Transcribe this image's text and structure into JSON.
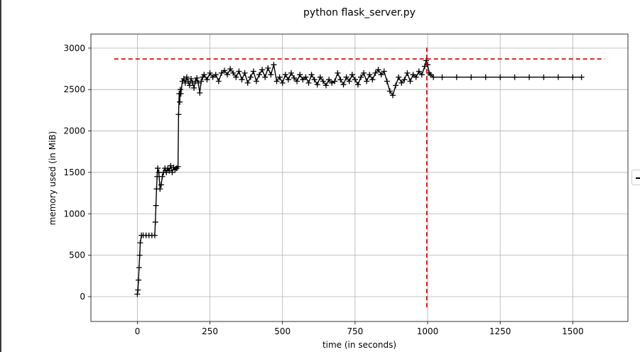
{
  "chart_data": {
    "type": "line",
    "title": "python flask_server.py",
    "xlabel": "time (in seconds)",
    "ylabel": "memory used (in MiB)",
    "xlim": [
      -160,
      1690
    ],
    "ylim": [
      -300,
      3170
    ],
    "x_ticks": [
      0,
      250,
      500,
      750,
      1000,
      1250,
      1500
    ],
    "y_ticks": [
      0,
      500,
      1000,
      1500,
      2000,
      2500,
      3000
    ],
    "x_tick_labels": [
      "0",
      "250",
      "500",
      "750",
      "1000",
      "1250",
      "1500"
    ],
    "y_tick_labels": [
      "0",
      "500",
      "1000",
      "1500",
      "2000",
      "2500",
      "3000"
    ],
    "grid": true,
    "series": [
      {
        "color": "#000000",
        "marker": "+",
        "x": [
          0,
          2,
          4,
          6,
          8,
          10,
          14,
          20,
          30,
          40,
          50,
          60,
          62,
          64,
          66,
          68,
          70,
          74,
          78,
          82,
          86,
          90,
          95,
          100,
          105,
          110,
          115,
          120,
          125,
          130,
          135,
          140,
          142,
          144,
          146,
          148,
          150,
          155,
          160,
          165,
          170,
          175,
          180,
          185,
          190,
          195,
          200,
          205,
          210,
          215,
          220,
          225,
          230,
          240,
          250,
          260,
          270,
          280,
          290,
          300,
          310,
          320,
          330,
          340,
          350,
          360,
          370,
          380,
          390,
          400,
          410,
          420,
          430,
          440,
          450,
          460,
          470,
          480,
          490,
          500,
          510,
          520,
          530,
          540,
          550,
          560,
          570,
          580,
          590,
          600,
          610,
          620,
          630,
          640,
          650,
          660,
          670,
          680,
          690,
          700,
          710,
          720,
          730,
          740,
          750,
          760,
          770,
          780,
          790,
          800,
          810,
          820,
          830,
          840,
          850,
          860,
          870,
          880,
          890,
          900,
          910,
          920,
          930,
          940,
          950,
          960,
          970,
          980,
          990,
          995,
          1000,
          1005,
          1010,
          1020,
          1050,
          1100,
          1150,
          1200,
          1250,
          1300,
          1350,
          1400,
          1450,
          1500,
          1530
        ],
        "y": [
          30,
          80,
          200,
          350,
          500,
          650,
          740,
          740,
          740,
          740,
          740,
          740,
          900,
          1100,
          1300,
          1450,
          1550,
          1500,
          1300,
          1350,
          1450,
          1500,
          1550,
          1500,
          1550,
          1520,
          1580,
          1500,
          1560,
          1530,
          1550,
          1570,
          2200,
          2450,
          2350,
          2500,
          2450,
          2600,
          2630,
          2580,
          2650,
          2600,
          2550,
          2630,
          2580,
          2520,
          2600,
          2640,
          2580,
          2460,
          2600,
          2650,
          2680,
          2620,
          2700,
          2650,
          2680,
          2600,
          2700,
          2730,
          2680,
          2750,
          2700,
          2650,
          2720,
          2620,
          2700,
          2580,
          2650,
          2720,
          2600,
          2680,
          2740,
          2650,
          2760,
          2680,
          2800,
          2600,
          2650,
          2580,
          2680,
          2620,
          2700,
          2640,
          2600,
          2680,
          2620,
          2650,
          2580,
          2680,
          2620,
          2560,
          2650,
          2600,
          2550,
          2620,
          2580,
          2600,
          2700,
          2620,
          2560,
          2650,
          2600,
          2680,
          2620,
          2560,
          2650,
          2700,
          2600,
          2680,
          2620,
          2700,
          2740,
          2680,
          2720,
          2600,
          2480,
          2430,
          2550,
          2650,
          2580,
          2620,
          2700,
          2600,
          2680,
          2650,
          2720,
          2680,
          2780,
          2850,
          2800,
          2700,
          2680,
          2650,
          2650,
          2650,
          2650,
          2650,
          2650,
          2650,
          2650,
          2650,
          2650,
          2650,
          2650
        ]
      }
    ],
    "reference_lines": [
      {
        "orientation": "horizontal",
        "value": 2870,
        "from": -80,
        "to": 1610,
        "color": "#cc0000",
        "style": "dashed"
      },
      {
        "orientation": "vertical",
        "value": 997,
        "from": -130,
        "to": 3030,
        "color": "#cc0000",
        "style": "dashed"
      }
    ]
  }
}
